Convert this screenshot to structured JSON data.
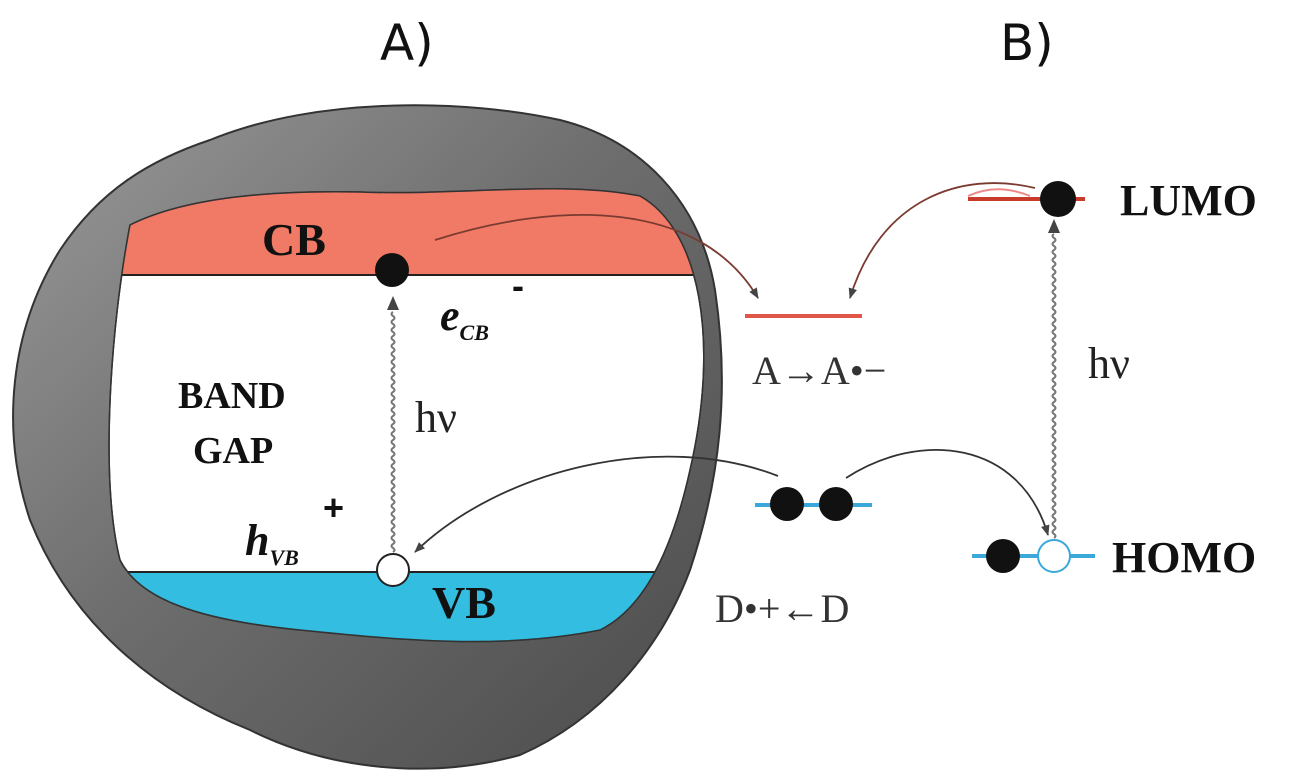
{
  "panels": {
    "a_label": "A)",
    "b_label": "B)"
  },
  "panel_a": {
    "cb_label": "CB",
    "vb_label": "VB",
    "band_gap_line1": "BAND",
    "band_gap_line2": "GAP",
    "electron_symbol": "e",
    "electron_subscript": "CB",
    "electron_charge": "-",
    "hole_symbol": "h",
    "hole_subscript": "VB",
    "hole_charge": "+",
    "photon_label": "hν"
  },
  "acceptor": {
    "label": "A→A•−"
  },
  "donor": {
    "label": "D•+←D"
  },
  "panel_b": {
    "lumo_label": "LUMO",
    "homo_label": "HOMO",
    "photon_label": "hν"
  },
  "colors": {
    "conduction_band": "#f07a66",
    "valence_band": "#33bde0",
    "particle_shell": "#6a6a6a",
    "arrow": "#9c3a2a",
    "lumo_line": "#c83a2a",
    "homo_line": "#3aa8d8",
    "acceptor_line": "#e0574a",
    "donor_line": "#3aa8d8"
  }
}
